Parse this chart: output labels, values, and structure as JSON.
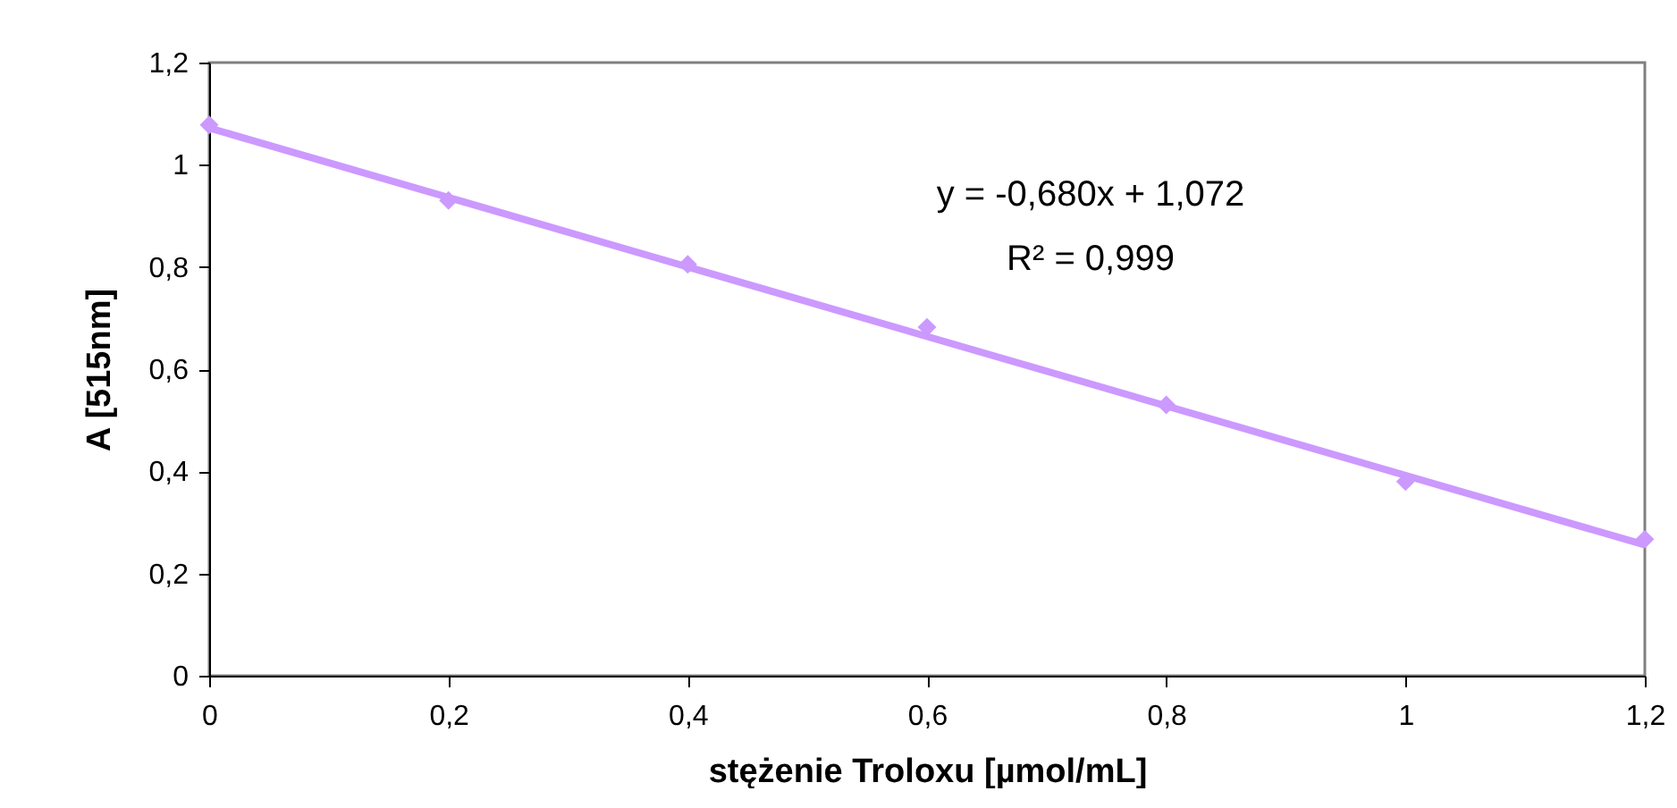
{
  "chart_data": {
    "type": "scatter",
    "xlabel": "stężenie Troloxu [µmol/mL]",
    "ylabel": "A [515nm]",
    "x": [
      0,
      0.2,
      0.4,
      0.6,
      0.8,
      1.0,
      1.2
    ],
    "series": [
      {
        "type": "scatter",
        "color": "#cc99ff",
        "marker": "diamond",
        "values": [
          1.078,
          0.93,
          0.805,
          0.682,
          0.53,
          0.38,
          0.267
        ]
      },
      {
        "type": "line",
        "color": "#cc99ff",
        "x": [
          0,
          1.2
        ],
        "values": [
          1.072,
          0.256
        ]
      }
    ],
    "xlim": [
      0,
      1.2
    ],
    "ylim": [
      0,
      1.2
    ],
    "xticks": [
      0,
      {
        "value": 0.2,
        "label": "0,2"
      },
      {
        "value": 0.4,
        "label": "0,4"
      },
      {
        "value": 0.6,
        "label": "0,6"
      },
      {
        "value": 0.8,
        "label": "0,8"
      },
      1,
      {
        "value": 1.2,
        "label": "1,2"
      }
    ],
    "yticks": [
      0,
      {
        "value": 0.2,
        "label": "0,2"
      },
      {
        "value": 0.4,
        "label": "0,4"
      },
      {
        "value": 0.6,
        "label": "0,6"
      },
      {
        "value": 0.8,
        "label": "0,8"
      },
      1,
      {
        "value": 1.2,
        "label": "1,2"
      }
    ],
    "annotations": [
      "y = -0,680x + 1,072",
      "R² = 0,999"
    ],
    "grid": false
  }
}
